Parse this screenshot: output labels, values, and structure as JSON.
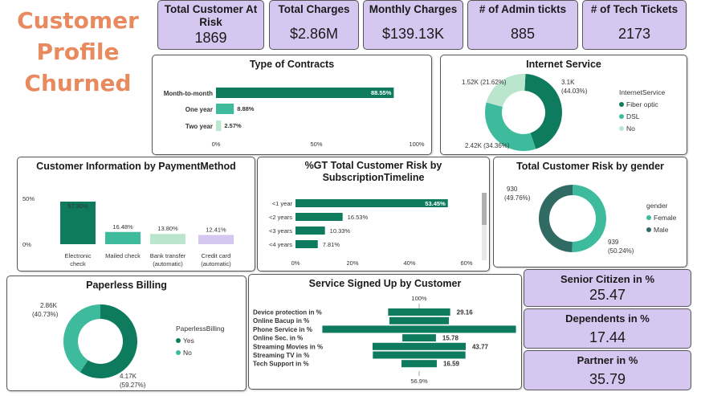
{
  "page_title": [
    "Customer",
    "Profile",
    "Churned"
  ],
  "kpis": [
    {
      "label": "Total Customer At Risk",
      "value": "1869"
    },
    {
      "label": "Total Charges",
      "value": "$2.86M"
    },
    {
      "label": "Monthly Charges",
      "value": "$139.13K"
    },
    {
      "label": "# of Admin tickts",
      "value": "885"
    },
    {
      "label": "# of Tech Tickets",
      "value": "2173"
    }
  ],
  "side_cards": [
    {
      "label": "Senior Citizen in %",
      "value": "25.47"
    },
    {
      "label": "Dependents in %",
      "value": "17.44"
    },
    {
      "label": "Partner in %",
      "value": "35.79"
    }
  ],
  "colors": {
    "dark_green": "#0f7b5e",
    "teal": "#3dbb9c",
    "light_green": "#b9e6cc",
    "lavender": "#d6c7f0",
    "title_orange": "#e8895e"
  },
  "chart_data": [
    {
      "id": "contracts",
      "type": "bar",
      "orientation": "horizontal",
      "title": "Type of Contracts",
      "categories": [
        "Month-to-month",
        "One year",
        "Two year"
      ],
      "values": [
        88.55,
        8.88,
        2.57
      ],
      "labels": [
        "88.55%",
        "8.88%",
        "2.57%"
      ],
      "colors": [
        "#0f7b5e",
        "#3dbb9c",
        "#b9e6cc"
      ],
      "xlim": [
        0,
        100
      ],
      "ticks": [
        "0%",
        "50%",
        "100%"
      ]
    },
    {
      "id": "internet",
      "type": "pie",
      "donut": true,
      "title": "Internet Service",
      "legend_title": "InternetService",
      "categories": [
        "Fiber optic",
        "DSL",
        "No"
      ],
      "values": [
        44.03,
        34.36,
        21.62
      ],
      "labels": [
        "3.1K (44.03%)",
        "2.42K (34.36%)",
        "1.52K (21.62%)"
      ],
      "colors": [
        "#0f7b5e",
        "#3dbb9c",
        "#b9e6cc"
      ]
    },
    {
      "id": "payment",
      "type": "bar",
      "orientation": "vertical",
      "title": "Customer Information by PaymentMethod",
      "categories": [
        "Electronic check",
        "Mailed check",
        "Bank transfer (automatic)",
        "Credit card (automatic)"
      ],
      "values": [
        57.3,
        16.48,
        13.8,
        12.41
      ],
      "labels": [
        "57.30%",
        "16.48%",
        "13.80%",
        "12.41%"
      ],
      "colors": [
        "#0f7b5e",
        "#3dbb9c",
        "#b9e6cc",
        "#d6c7f0"
      ],
      "ylim": [
        0,
        60
      ],
      "ticks": [
        "0%",
        "50%"
      ]
    },
    {
      "id": "timeline",
      "type": "bar",
      "orientation": "horizontal",
      "title": "%GT Total Customer Risk by SubscriptionTimeline",
      "categories": [
        "<1 year",
        "<2 years",
        "<3 years",
        "<4 years"
      ],
      "values": [
        53.45,
        16.53,
        10.33,
        7.81
      ],
      "labels": [
        "53.45%",
        "16.53%",
        "10.33%",
        "7.81%"
      ],
      "xlim": [
        0,
        60
      ],
      "ticks": [
        "0%",
        "20%",
        "40%",
        "60%"
      ]
    },
    {
      "id": "gender",
      "type": "pie",
      "donut": true,
      "title": "Total Customer Risk by gender",
      "legend_title": "gender",
      "categories": [
        "Female",
        "Male"
      ],
      "values": [
        939,
        930
      ],
      "labels": [
        "939 (50.24%)",
        "930 (49.76%)"
      ],
      "colors": [
        "#3dbb9c",
        "#2f6b62"
      ]
    },
    {
      "id": "paperless",
      "type": "pie",
      "donut": true,
      "title": "Paperless Billing",
      "legend_title": "PaperlessBilling",
      "categories": [
        "Yes",
        "No"
      ],
      "values": [
        59.27,
        40.73
      ],
      "labels": [
        "4.17K (59.27%)",
        "2.86K (40.73%)"
      ],
      "colors": [
        "#0f7b5e",
        "#3dbb9c"
      ]
    },
    {
      "id": "services",
      "type": "bar",
      "orientation": "horizontal",
      "style": "funnel",
      "title": "Service Signed Up by Customer",
      "categories": [
        "Device protection in %",
        "Online Bacup in %",
        "Phone Service in %",
        "Online Sec. in %",
        "Streaming Movies in %",
        "Streaming TV in %",
        "Tech Support in %"
      ],
      "values": [
        29.16,
        27.96,
        90.99,
        15.78,
        43.77,
        43.54,
        16.59
      ],
      "labels": [
        "29.16",
        "",
        "",
        "15.78",
        "43.77",
        "",
        "16.59"
      ],
      "top_label": "100%",
      "bottom_label": "56.9%"
    }
  ]
}
